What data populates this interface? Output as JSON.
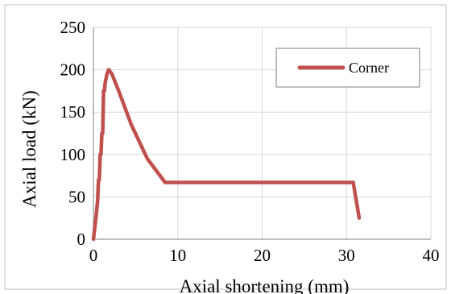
{
  "chart_data": {
    "type": "line",
    "title": "",
    "xlabel": "Axial shortening (mm)",
    "ylabel": "Axial load (kN)",
    "xlim": [
      0,
      40
    ],
    "ylim": [
      0,
      250
    ],
    "x_ticks": [
      "0",
      "10",
      "20",
      "30",
      "40"
    ],
    "y_ticks": [
      "0",
      "50",
      "100",
      "150",
      "200",
      "250"
    ],
    "grid": true,
    "legend_position": "top-right",
    "series": [
      {
        "name": "Corner",
        "color": "#c0504d",
        "x": [
          0,
          0.3,
          0.5,
          0.6,
          0.7,
          0.8,
          0.9,
          1.0,
          1.1,
          1.2,
          1.3,
          1.4,
          1.6,
          1.8,
          2.2,
          3.0,
          4.5,
          6.4,
          8.5,
          30.8,
          31.5
        ],
        "y": [
          0,
          25,
          45,
          70,
          70,
          100,
          100,
          125,
          125,
          175,
          175,
          185,
          195,
          200,
          195,
          175,
          135,
          95,
          67,
          67,
          25
        ]
      }
    ]
  }
}
